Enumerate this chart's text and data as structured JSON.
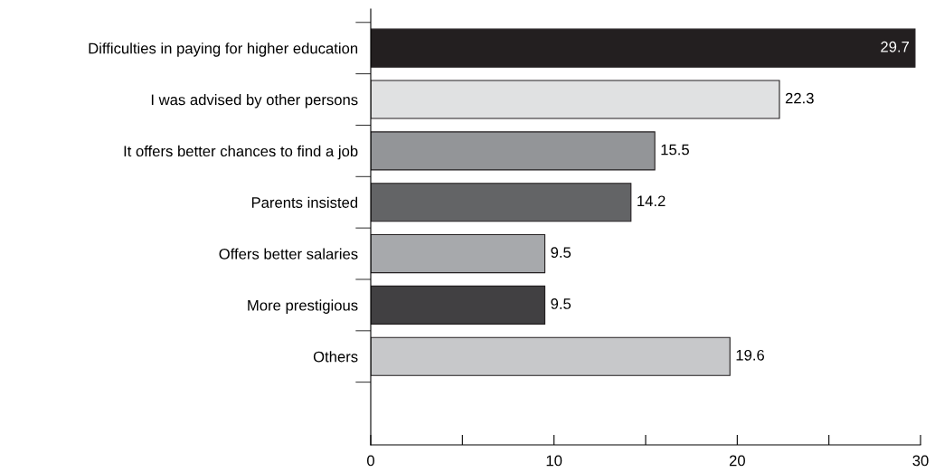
{
  "chart_data": {
    "type": "bar",
    "orientation": "horizontal",
    "categories": [
      "Difficulties in paying for higher education",
      "I was advised by other persons",
      "It offers better chances to find a job",
      "Parents insisted",
      "Offers better salaries",
      "More prestigious",
      "Others"
    ],
    "values": [
      29.7,
      22.3,
      15.5,
      14.2,
      9.5,
      9.5,
      19.6
    ],
    "colors": [
      "#231f20",
      "#e0e1e2",
      "#939598",
      "#636466",
      "#a7a9ac",
      "#414042",
      "#c7c8ca"
    ],
    "xlim": [
      0,
      30
    ],
    "xticks": [
      0,
      {
        "value": 5,
        "label": null
      },
      10,
      {
        "value": 15,
        "label": null
      },
      20,
      {
        "value": 25,
        "label": null
      },
      30
    ],
    "data_labels": true,
    "grid": false,
    "legend": false
  }
}
